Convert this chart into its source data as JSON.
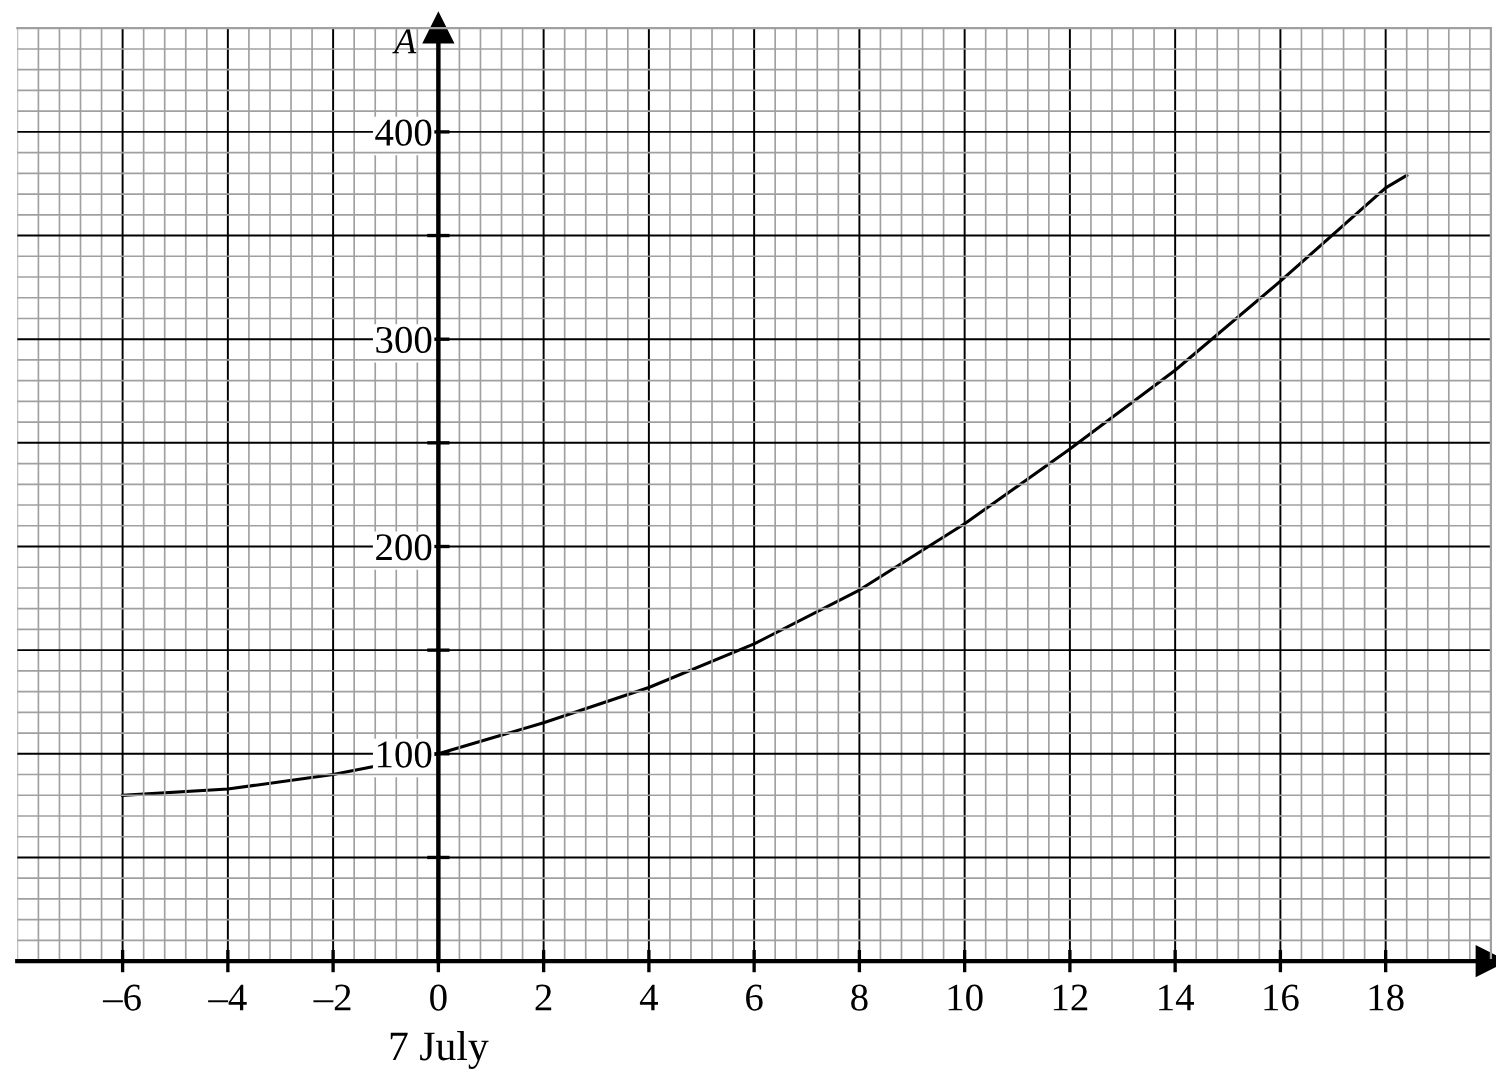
{
  "chart_data": {
    "type": "line",
    "ylabel": "A",
    "x": [
      -6,
      -4,
      -2,
      0,
      2,
      4,
      6,
      8,
      10,
      12,
      14,
      16,
      18,
      18.4
    ],
    "series": [
      {
        "color": "#000000",
        "values": [
          80,
          83,
          90,
          100,
          115,
          132,
          153,
          179,
          211,
          247,
          285,
          328,
          373,
          379
        ]
      }
    ],
    "xlim": [
      -8,
      20
    ],
    "ylim": [
      0,
      450
    ],
    "xticks": [
      {
        "value": -6,
        "label": "–6"
      },
      {
        "value": -4,
        "label": "–4"
      },
      {
        "value": -2,
        "label": "–2"
      },
      0,
      2,
      4,
      6,
      8,
      10,
      12,
      14,
      16,
      18
    ],
    "yticks": [
      {
        "value": 50,
        "label": null
      },
      100,
      {
        "value": 150,
        "label": null
      },
      200,
      {
        "value": 250,
        "label": null
      },
      300,
      {
        "value": 350,
        "label": null
      },
      400
    ],
    "annotations": [
      "7 July"
    ],
    "grid": true,
    "marker": "none",
    "line_style": "solid",
    "legend": false
  }
}
